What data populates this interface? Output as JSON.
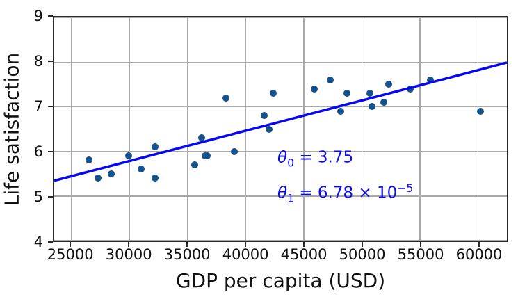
{
  "chart_data": {
    "type": "scatter",
    "title": "",
    "xlabel": "GDP per capita (USD)",
    "ylabel": "Life satisfaction",
    "xlim": [
      23500,
      62500
    ],
    "ylim": [
      4,
      9
    ],
    "x_ticks": [
      25000,
      30000,
      35000,
      40000,
      45000,
      50000,
      55000,
      60000
    ],
    "y_ticks": [
      4,
      5,
      6,
      7,
      8,
      9
    ],
    "grid": true,
    "legend": "none",
    "points": [
      [
        26500,
        5.8
      ],
      [
        27300,
        5.4
      ],
      [
        28400,
        5.5
      ],
      [
        29900,
        5.9
      ],
      [
        31000,
        5.6
      ],
      [
        32200,
        5.4
      ],
      [
        32200,
        6.1
      ],
      [
        35600,
        5.7
      ],
      [
        36200,
        6.3
      ],
      [
        36500,
        5.9
      ],
      [
        36700,
        5.9
      ],
      [
        38300,
        7.2
      ],
      [
        39000,
        6.0
      ],
      [
        41600,
        6.8
      ],
      [
        42000,
        6.5
      ],
      [
        42400,
        7.3
      ],
      [
        45900,
        7.4
      ],
      [
        47300,
        7.6
      ],
      [
        48200,
        6.9
      ],
      [
        48700,
        7.3
      ],
      [
        50700,
        7.3
      ],
      [
        50900,
        7.0
      ],
      [
        51900,
        7.1
      ],
      [
        52300,
        7.5
      ],
      [
        54200,
        7.4
      ],
      [
        55900,
        7.6
      ],
      [
        60200,
        6.9
      ]
    ],
    "regression_line": {
      "theta0": 3.75,
      "theta1": 6.78e-05
    },
    "colors": {
      "point": "#15518c",
      "line": "#0606f2",
      "grid": "#a8a8a8",
      "spine": "#2a2a2a",
      "tick": "#2a2a2a",
      "text": "#111111",
      "annotation": "#0a0af0"
    }
  },
  "annotation": {
    "lines": [
      {
        "sym": "θ",
        "sub": "0",
        "rest": " = 3.75",
        "sup": ""
      },
      {
        "sym": "θ",
        "sub": "1",
        "rest": " = 6.78 × 10",
        "sup": "−5"
      }
    ]
  }
}
